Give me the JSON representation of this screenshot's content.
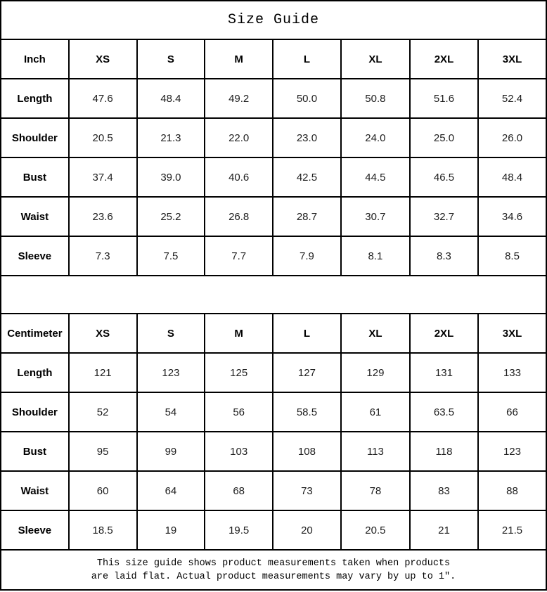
{
  "title": "Size Guide",
  "columns": [
    "XS",
    "S",
    "M",
    "L",
    "XL",
    "2XL",
    "3XL"
  ],
  "tables": [
    {
      "unit_label": "Inch",
      "rows": [
        {
          "label": "Length",
          "values": [
            "47.6",
            "48.4",
            "49.2",
            "50.0",
            "50.8",
            "51.6",
            "52.4"
          ]
        },
        {
          "label": "Shoulder",
          "values": [
            "20.5",
            "21.3",
            "22.0",
            "23.0",
            "24.0",
            "25.0",
            "26.0"
          ]
        },
        {
          "label": "Bust",
          "values": [
            "37.4",
            "39.0",
            "40.6",
            "42.5",
            "44.5",
            "46.5",
            "48.4"
          ]
        },
        {
          "label": "Waist",
          "values": [
            "23.6",
            "25.2",
            "26.8",
            "28.7",
            "30.7",
            "32.7",
            "34.6"
          ]
        },
        {
          "label": "Sleeve",
          "values": [
            "7.3",
            "7.5",
            "7.7",
            "7.9",
            "8.1",
            "8.3",
            "8.5"
          ]
        }
      ]
    },
    {
      "unit_label": "Centimeter",
      "rows": [
        {
          "label": "Length",
          "values": [
            "121",
            "123",
            "125",
            "127",
            "129",
            "131",
            "133"
          ]
        },
        {
          "label": "Shoulder",
          "values": [
            "52",
            "54",
            "56",
            "58.5",
            "61",
            "63.5",
            "66"
          ]
        },
        {
          "label": "Bust",
          "values": [
            "95",
            "99",
            "103",
            "108",
            "113",
            "118",
            "123"
          ]
        },
        {
          "label": "Waist",
          "values": [
            "60",
            "64",
            "68",
            "73",
            "78",
            "83",
            "88"
          ]
        },
        {
          "label": "Sleeve",
          "values": [
            "18.5",
            "19",
            "19.5",
            "20",
            "20.5",
            "21",
            "21.5"
          ]
        }
      ]
    }
  ],
  "footer": {
    "line1": "This size guide shows product measurements taken when products",
    "line2": "are laid flat. Actual product measurements may vary by up to 1″."
  },
  "colors": {
    "border": "#000000",
    "text": "#1d1d1d",
    "label": "#000000",
    "background": "#ffffff"
  }
}
